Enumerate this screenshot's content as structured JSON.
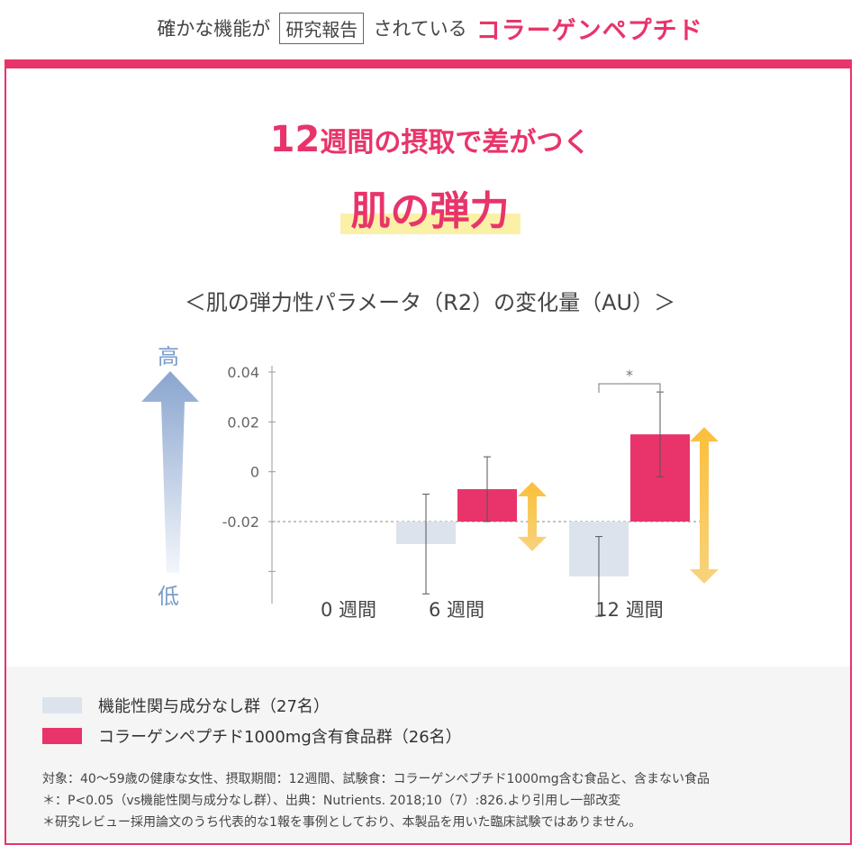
{
  "header": {
    "prefix": "確かな機能が",
    "boxed": "研究報告",
    "middle": "されている",
    "brand": "コラーゲンペプチド"
  },
  "headline": {
    "number": "12",
    "line1_rest": "週間の摂取で差がつく",
    "line2": "肌の弾力"
  },
  "arrow_labels": {
    "high": "高",
    "low": "低"
  },
  "colors": {
    "accent": "#e8346a",
    "control": "#dde3ec",
    "arrow": "#f6a623"
  },
  "chart_data": {
    "type": "bar",
    "title": "＜肌の弾力性パラメータ（R2）の変化量（AU）＞",
    "categories": [
      "0 週間",
      "6 週間",
      "12 週間"
    ],
    "yticks": [
      "0.04",
      "0.02",
      "0",
      "-0.02"
    ],
    "ylim": [
      -0.045,
      0.045
    ],
    "baseline": -0.02,
    "series": [
      {
        "name": "機能性関与成分なし群（27名）",
        "values": [
          null,
          -0.029,
          -0.042
        ],
        "err": [
          null,
          0.02,
          0.016
        ]
      },
      {
        "name": "コラーゲンペプチド1000mg含有食品群（26名）",
        "values": [
          null,
          -0.007,
          0.015
        ],
        "err": [
          null,
          0.013,
          0.017
        ]
      }
    ],
    "significance": [
      {
        "category": "12 週間",
        "label": "*"
      }
    ]
  },
  "notes": [
    "対象：40～59歳の健康な女性、摂取期間：12週間、試験食：コラーゲンペプチド1000mg含む食品と、含まない食品",
    "＊：P<0.05（vs機能性関与成分なし群）、出典：Nutrients. 2018;10（7）:826.より引用し一部改変",
    "＊研究レビュー採用論文のうち代表的な1報を事例としており、本製品を用いた臨床試験ではありません。"
  ]
}
